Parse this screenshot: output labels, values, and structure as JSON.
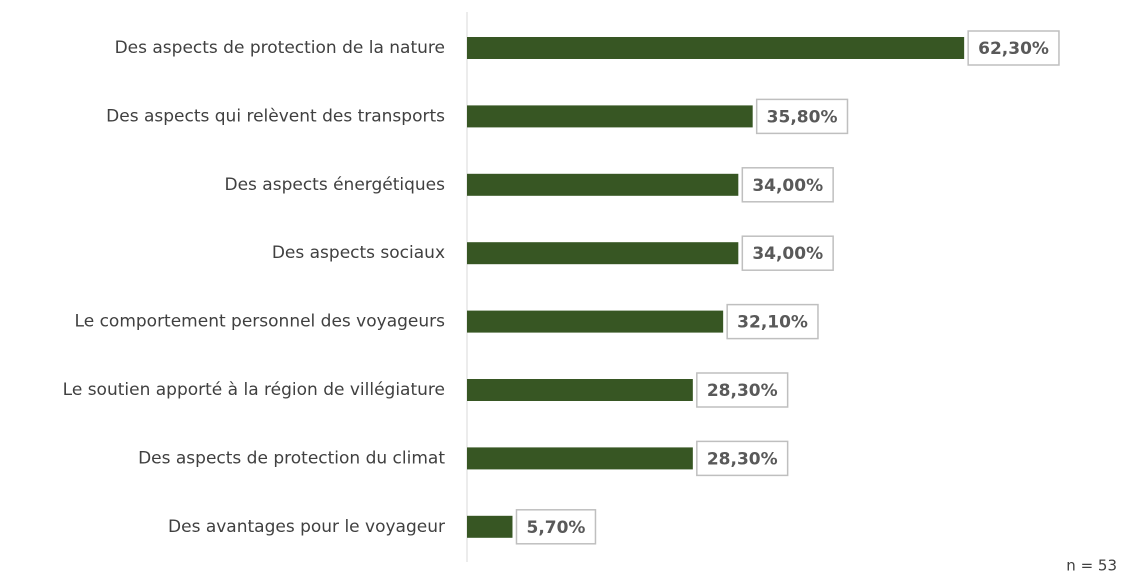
{
  "chart_data": {
    "type": "bar",
    "orientation": "horizontal",
    "categories": [
      "Des aspects de protection de la nature",
      "Des aspects qui relèvent des transports",
      "Des aspects énergétiques",
      "Des aspects sociaux",
      "Le comportement personnel des voyageurs",
      "Le soutien apporté à la région de villégiature",
      "Des aspects de protection du climat",
      "Des avantages pour le voyageur"
    ],
    "values": [
      62.3,
      35.8,
      34.0,
      34.0,
      32.1,
      28.3,
      28.3,
      5.7
    ],
    "value_labels": [
      "62,30%",
      "35,80%",
      "34,00%",
      "34,00%",
      "32,10%",
      "28,30%",
      "28,30%",
      "5,70%"
    ],
    "color": "#375623",
    "annotation": "n = 53"
  }
}
